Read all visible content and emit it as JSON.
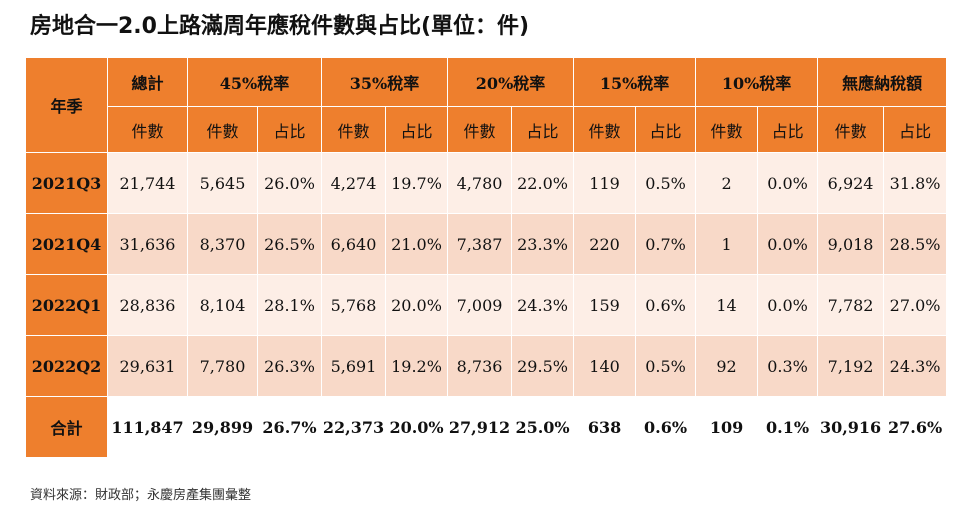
{
  "title": "房地合一2.0上路滿周年應稅件數與占比(單位：件)",
  "table": {
    "corner_label": "年季",
    "groups": [
      "總計",
      "45%稅率",
      "35%稅率",
      "20%稅率",
      "15%稅率",
      "10%稅率",
      "無應納稅額"
    ],
    "sub": {
      "count": "件數",
      "share": "占比"
    },
    "rows": [
      {
        "label": "2021Q3",
        "cells": [
          "21,744",
          "5,645",
          "26.0%",
          "4,274",
          "19.7%",
          "4,780",
          "22.0%",
          "119",
          "0.5%",
          "2",
          "0.0%",
          "6,924",
          "31.8%"
        ]
      },
      {
        "label": "2021Q4",
        "cells": [
          "31,636",
          "8,370",
          "26.5%",
          "6,640",
          "21.0%",
          "7,387",
          "23.3%",
          "220",
          "0.7%",
          "1",
          "0.0%",
          "9,018",
          "28.5%"
        ]
      },
      {
        "label": "2022Q1",
        "cells": [
          "28,836",
          "8,104",
          "28.1%",
          "5,768",
          "20.0%",
          "7,009",
          "24.3%",
          "159",
          "0.6%",
          "14",
          "0.0%",
          "7,782",
          "27.0%"
        ]
      },
      {
        "label": "2022Q2",
        "cells": [
          "29,631",
          "7,780",
          "26.3%",
          "5,691",
          "19.2%",
          "8,736",
          "29.5%",
          "140",
          "0.5%",
          "92",
          "0.3%",
          "7,192",
          "24.3%"
        ]
      }
    ],
    "total": {
      "label": "合計",
      "cells": [
        "111,847",
        "29,899",
        "26.7%",
        "22,373",
        "20.0%",
        "27,912",
        "25.0%",
        "638",
        "0.6%",
        "109",
        "0.1%",
        "30,916",
        "27.6%"
      ]
    }
  },
  "source": "資料來源：財政部；永慶房產集團彙整"
}
